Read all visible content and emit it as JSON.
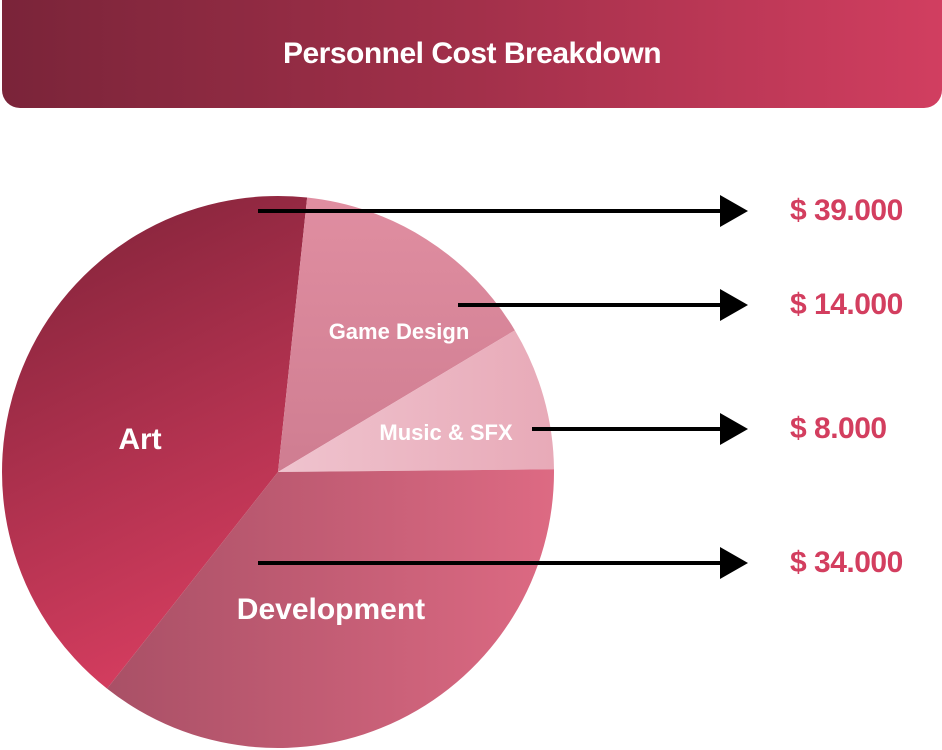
{
  "header": {
    "title": "Personnel Cost Breakdown"
  },
  "chart_data": {
    "type": "pie",
    "title": "Personnel Cost Breakdown",
    "unit": "$",
    "slices": [
      {
        "category": "Art",
        "value": 39000,
        "value_label": "$ 39.000",
        "color": "#a82a48"
      },
      {
        "category": "Game Design",
        "value": 14000,
        "value_label": "$ 14.000",
        "color": "#d98498"
      },
      {
        "category": "Music & SFX",
        "value": 8000,
        "value_label": "$ 8.000",
        "color": "#ebb3c0"
      },
      {
        "category": "Development",
        "value": 34000,
        "value_label": "$ 34.000",
        "color": "#c65872"
      }
    ],
    "legend": "none",
    "value_label_color": "#d33e5f"
  }
}
